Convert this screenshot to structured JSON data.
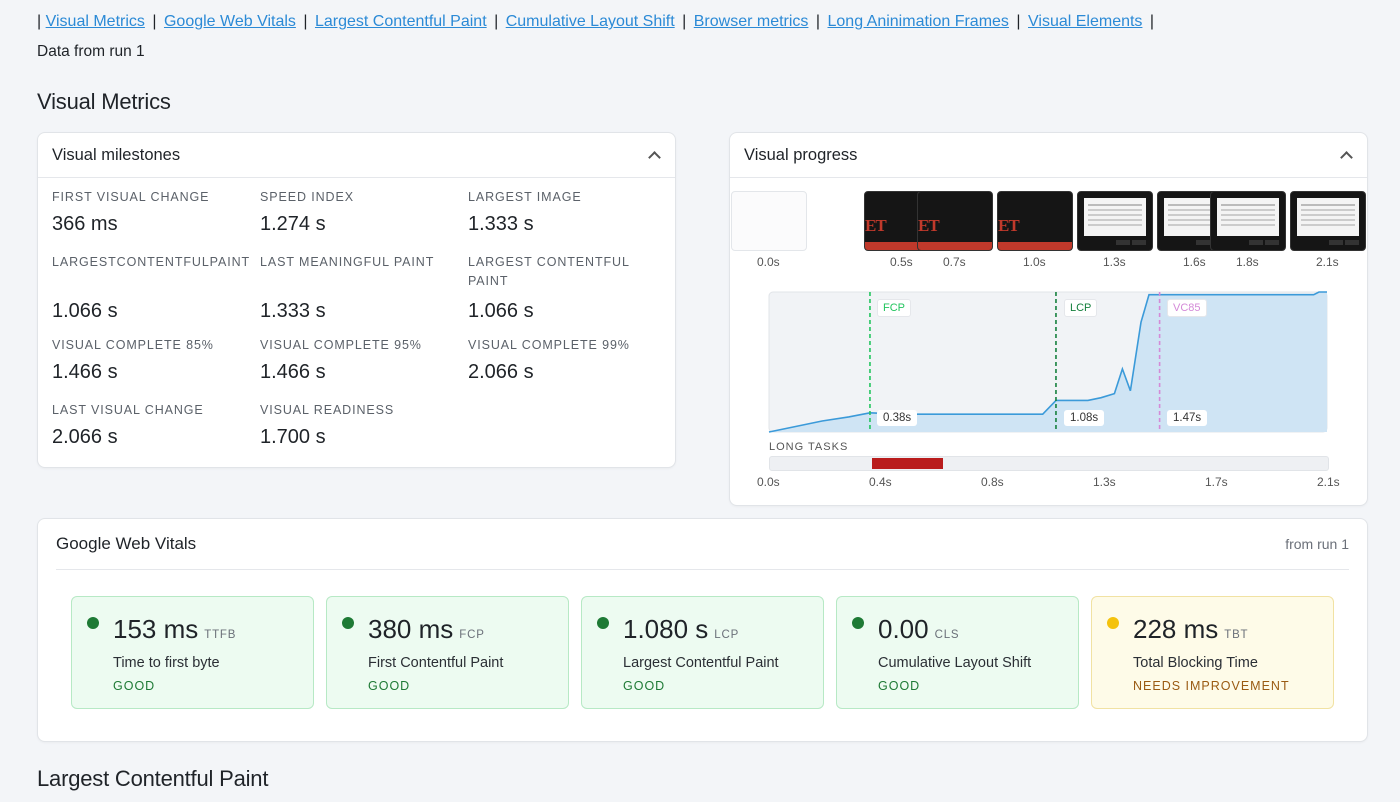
{
  "nav": {
    "links": [
      "Visual Metrics",
      "Google Web Vitals",
      "Largest Contentful Paint",
      "Cumulative Layout Shift",
      "Browser metrics",
      "Long Aninimation Frames",
      "Visual Elements"
    ],
    "separator": "|"
  },
  "run_line": "Data from run 1",
  "section_visual_metrics": "Visual Metrics",
  "milestones": {
    "title": "Visual milestones",
    "items": [
      {
        "label": "FIRST VISUAL CHANGE",
        "value": "366 ms"
      },
      {
        "label": "SPEED INDEX",
        "value": "1.274 s"
      },
      {
        "label": "LARGEST IMAGE",
        "value": "1.333 s"
      },
      {
        "label": "LARGESTCONTENTFULPAINT",
        "value": "1.066 s"
      },
      {
        "label": "LAST MEANINGFUL PAINT",
        "value": "1.333 s"
      },
      {
        "label": "LARGEST CONTENTFUL PAINT",
        "value": "1.066 s"
      },
      {
        "label": "VISUAL COMPLETE 85%",
        "value": "1.466 s"
      },
      {
        "label": "VISUAL COMPLETE 95%",
        "value": "1.466 s"
      },
      {
        "label": "VISUAL COMPLETE 99%",
        "value": "2.066 s"
      },
      {
        "label": "LAST VISUAL CHANGE",
        "value": "2.066 s"
      },
      {
        "label": "VISUAL READINESS",
        "value": "1.700 s"
      }
    ]
  },
  "progress": {
    "title": "Visual progress",
    "filmstrip_times": [
      "0.0s",
      "0.5s",
      "0.7s",
      "1.0s",
      "1.3s",
      "1.6s",
      "1.8s",
      "2.1s"
    ],
    "markers": [
      {
        "name": "FCP",
        "time": "0.38s",
        "color": "#22c55e"
      },
      {
        "name": "LCP",
        "time": "1.08s",
        "color": "#15803d"
      },
      {
        "name": "VC85",
        "time": "1.47s",
        "color": "#d48ad8"
      }
    ],
    "long_tasks_label": "LONG TASKS",
    "axis_ticks": [
      "0.0s",
      "0.4s",
      "0.8s",
      "1.3s",
      "1.7s",
      "2.1s"
    ],
    "long_task": {
      "start_s": 0.38,
      "end_s": 0.65,
      "color": "#b91c1c"
    }
  },
  "chart_data": {
    "type": "area",
    "x": [
      0.0,
      0.1,
      0.2,
      0.3,
      0.38,
      0.5,
      0.6,
      0.7,
      0.8,
      0.9,
      1.0,
      1.03,
      1.08,
      1.15,
      1.2,
      1.25,
      1.3,
      1.33,
      1.36,
      1.4,
      1.43,
      1.47,
      1.6,
      1.8,
      2.0,
      2.05,
      2.07,
      2.1
    ],
    "y": [
      0,
      4,
      8,
      11,
      14,
      13,
      13,
      13,
      13,
      13,
      13,
      13,
      23,
      23,
      23,
      25,
      28,
      46,
      30,
      80,
      100,
      100,
      100,
      100,
      100,
      100,
      102,
      102
    ],
    "xlim": [
      0,
      2.1
    ],
    "ylim": [
      0,
      102
    ],
    "title": "",
    "xlabel": "",
    "ylabel": ""
  },
  "vitals": {
    "title": "Google Web Vitals",
    "run": "from run 1",
    "items": [
      {
        "value": "153 ms",
        "abbr": "TTFB",
        "name": "Time to first byte",
        "status": "GOOD"
      },
      {
        "value": "380 ms",
        "abbr": "FCP",
        "name": "First Contentful Paint",
        "status": "GOOD"
      },
      {
        "value": "1.080 s",
        "abbr": "LCP",
        "name": "Largest Contentful Paint",
        "status": "GOOD"
      },
      {
        "value": "0.00",
        "abbr": "CLS",
        "name": "Cumulative Layout Shift",
        "status": "GOOD"
      },
      {
        "value": "228 ms",
        "abbr": "TBT",
        "name": "Total Blocking Time",
        "status": "NEEDS IMPROVEMENT"
      }
    ]
  },
  "section_lcp": "Largest Contentful Paint"
}
